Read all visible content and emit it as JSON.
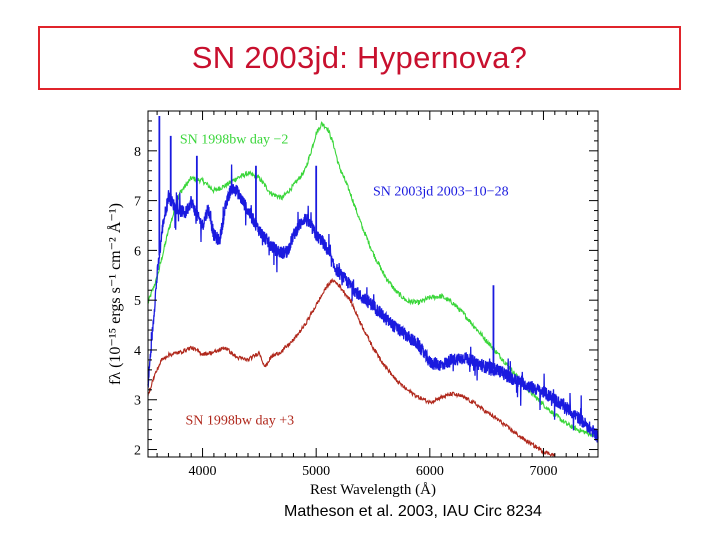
{
  "slide_title": "SN 2003jd: Hypernova?",
  "citation": "Matheson et al. 2003, IAU Circ 8234",
  "colors": {
    "title": "#c8102e",
    "title_border": "#e0242b",
    "sn2003jd": "#1a1adf",
    "sn1998bw_m2": "#3ad63a",
    "sn1998bw_p3": "#b0281c"
  },
  "chart_data": {
    "type": "line",
    "title": "",
    "xlabel": "Rest Wavelength (Å)",
    "ylabel": "fλ (10⁻¹⁵ ergs s⁻¹ cm⁻² Å⁻¹)",
    "xlim": [
      3520,
      7480
    ],
    "ylim": [
      1.85,
      8.8
    ],
    "xticks": [
      4000,
      5000,
      6000,
      7000
    ],
    "yticks": [
      2,
      3,
      4,
      5,
      6,
      7,
      8
    ],
    "series": [
      {
        "name": "SN 1998bw day −2",
        "color": "#3ad63a",
        "noise": 0.05,
        "points": [
          [
            3520,
            4.95
          ],
          [
            3600,
            5.45
          ],
          [
            3700,
            6.4
          ],
          [
            3800,
            7.15
          ],
          [
            3900,
            7.45
          ],
          [
            4000,
            7.4
          ],
          [
            4100,
            7.2
          ],
          [
            4200,
            7.3
          ],
          [
            4300,
            7.45
          ],
          [
            4400,
            7.55
          ],
          [
            4500,
            7.45
          ],
          [
            4600,
            7.15
          ],
          [
            4700,
            7.05
          ],
          [
            4800,
            7.3
          ],
          [
            4900,
            7.6
          ],
          [
            4950,
            7.95
          ],
          [
            5000,
            8.35
          ],
          [
            5050,
            8.55
          ],
          [
            5100,
            8.45
          ],
          [
            5150,
            8.15
          ],
          [
            5200,
            7.7
          ],
          [
            5300,
            7.15
          ],
          [
            5400,
            6.5
          ],
          [
            5500,
            5.95
          ],
          [
            5600,
            5.5
          ],
          [
            5700,
            5.18
          ],
          [
            5800,
            4.98
          ],
          [
            5900,
            4.95
          ],
          [
            6000,
            5.05
          ],
          [
            6100,
            5.08
          ],
          [
            6200,
            4.95
          ],
          [
            6300,
            4.72
          ],
          [
            6400,
            4.45
          ],
          [
            6500,
            4.18
          ],
          [
            6600,
            3.92
          ],
          [
            6700,
            3.65
          ],
          [
            6800,
            3.38
          ],
          [
            6900,
            3.12
          ],
          [
            7000,
            2.9
          ],
          [
            7100,
            2.7
          ],
          [
            7200,
            2.52
          ],
          [
            7300,
            2.4
          ],
          [
            7400,
            2.32
          ],
          [
            7480,
            2.28
          ]
        ]
      },
      {
        "name": "SN 2003jd 2003−10−28",
        "color": "#1a1adf",
        "noise": 0.13,
        "points": [
          [
            3520,
            3.3
          ],
          [
            3560,
            4.4
          ],
          [
            3600,
            5.5
          ],
          [
            3650,
            6.5
          ],
          [
            3700,
            7.1
          ],
          [
            3750,
            6.9
          ],
          [
            3800,
            6.8
          ],
          [
            3850,
            6.75
          ],
          [
            3900,
            7.0
          ],
          [
            3950,
            6.7
          ],
          [
            4000,
            6.5
          ],
          [
            4050,
            6.85
          ],
          [
            4100,
            6.3
          ],
          [
            4150,
            6.2
          ],
          [
            4200,
            6.85
          ],
          [
            4250,
            7.25
          ],
          [
            4300,
            7.2
          ],
          [
            4350,
            7.0
          ],
          [
            4400,
            6.8
          ],
          [
            4450,
            6.6
          ],
          [
            4500,
            6.4
          ],
          [
            4550,
            6.25
          ],
          [
            4600,
            6.1
          ],
          [
            4650,
            6.0
          ],
          [
            4700,
            5.95
          ],
          [
            4750,
            6.0
          ],
          [
            4800,
            6.3
          ],
          [
            4850,
            6.5
          ],
          [
            4900,
            6.65
          ],
          [
            4950,
            6.5
          ],
          [
            5000,
            6.3
          ],
          [
            5050,
            6.2
          ],
          [
            5100,
            6.0
          ],
          [
            5150,
            5.7
          ],
          [
            5200,
            5.55
          ],
          [
            5300,
            5.3
          ],
          [
            5400,
            5.05
          ],
          [
            5500,
            4.9
          ],
          [
            5600,
            4.65
          ],
          [
            5700,
            4.45
          ],
          [
            5800,
            4.28
          ],
          [
            5900,
            4.1
          ],
          [
            6000,
            3.75
          ],
          [
            6100,
            3.7
          ],
          [
            6200,
            3.8
          ],
          [
            6300,
            3.85
          ],
          [
            6400,
            3.75
          ],
          [
            6500,
            3.65
          ],
          [
            6600,
            3.6
          ],
          [
            6700,
            3.45
          ],
          [
            6800,
            3.35
          ],
          [
            6900,
            3.25
          ],
          [
            7000,
            3.15
          ],
          [
            7100,
            3.0
          ],
          [
            7200,
            2.85
          ],
          [
            7300,
            2.65
          ],
          [
            7400,
            2.45
          ],
          [
            7480,
            2.25
          ]
        ],
        "spikes": [
          [
            3620,
            8.7
          ],
          [
            3720,
            8.3
          ],
          [
            3950,
            7.9
          ],
          [
            4470,
            7.7
          ],
          [
            5000,
            7.7
          ],
          [
            6560,
            5.3
          ]
        ]
      },
      {
        "name": "SN 1998bw day +3",
        "color": "#b0281c",
        "noise": 0.04,
        "points": [
          [
            3520,
            3.1
          ],
          [
            3580,
            3.5
          ],
          [
            3640,
            3.8
          ],
          [
            3700,
            3.9
          ],
          [
            3800,
            3.95
          ],
          [
            3900,
            4.05
          ],
          [
            4000,
            3.92
          ],
          [
            4100,
            3.95
          ],
          [
            4200,
            4.05
          ],
          [
            4300,
            3.85
          ],
          [
            4400,
            3.8
          ],
          [
            4500,
            3.95
          ],
          [
            4550,
            3.65
          ],
          [
            4600,
            3.85
          ],
          [
            4700,
            3.98
          ],
          [
            4800,
            4.2
          ],
          [
            4900,
            4.5
          ],
          [
            5000,
            4.9
          ],
          [
            5100,
            5.3
          ],
          [
            5150,
            5.4
          ],
          [
            5200,
            5.3
          ],
          [
            5300,
            5.0
          ],
          [
            5400,
            4.5
          ],
          [
            5500,
            4.05
          ],
          [
            5600,
            3.7
          ],
          [
            5700,
            3.4
          ],
          [
            5800,
            3.2
          ],
          [
            5900,
            3.05
          ],
          [
            6000,
            2.95
          ],
          [
            6100,
            3.05
          ],
          [
            6200,
            3.12
          ],
          [
            6300,
            3.05
          ],
          [
            6400,
            2.92
          ],
          [
            6500,
            2.75
          ],
          [
            6600,
            2.6
          ],
          [
            6700,
            2.42
          ],
          [
            6800,
            2.25
          ],
          [
            6900,
            2.1
          ],
          [
            7000,
            1.96
          ],
          [
            7100,
            1.88
          ]
        ]
      }
    ],
    "annotations": [
      {
        "text": "SN 1998bw day −2",
        "series": 0,
        "x": 3800,
        "y": 8.15
      },
      {
        "text": "SN 2003jd 2003−10−28",
        "series": 1,
        "x": 5500,
        "y": 7.1
      },
      {
        "text": "SN 1998bw day +3",
        "series": 2,
        "x": 3850,
        "y": 2.5
      }
    ]
  }
}
